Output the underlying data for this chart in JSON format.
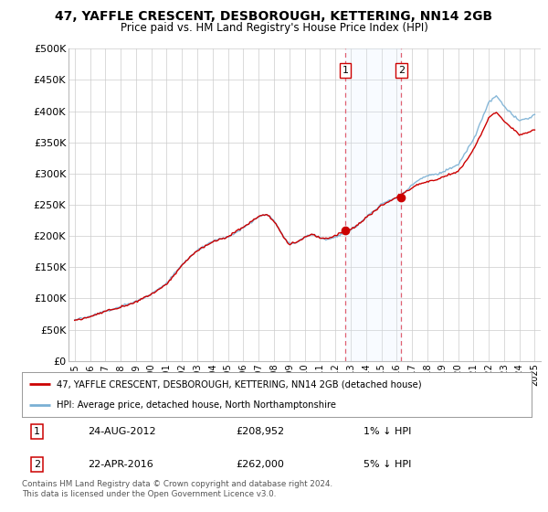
{
  "title": "47, YAFFLE CRESCENT, DESBOROUGH, KETTERING, NN14 2GB",
  "subtitle": "Price paid vs. HM Land Registry's House Price Index (HPI)",
  "ylim": [
    0,
    500000
  ],
  "yticks": [
    0,
    50000,
    100000,
    150000,
    200000,
    250000,
    300000,
    350000,
    400000,
    450000,
    500000
  ],
  "ytick_labels": [
    "£0",
    "£50K",
    "£100K",
    "£150K",
    "£200K",
    "£250K",
    "£300K",
    "£350K",
    "£400K",
    "£450K",
    "£500K"
  ],
  "background_color": "#ffffff",
  "plot_bg_color": "#ffffff",
  "grid_color": "#cccccc",
  "hpi_color": "#7ab0d4",
  "price_color": "#cc0000",
  "shade_color": "#ddeeff",
  "t1_year_float": 2012.64,
  "t2_year_float": 2016.29,
  "transaction1": {
    "date": "24-AUG-2012",
    "price": 208952,
    "label": "1",
    "pct": "1% ↓ HPI"
  },
  "transaction2": {
    "date": "22-APR-2016",
    "price": 262000,
    "label": "2",
    "pct": "5% ↓ HPI"
  },
  "legend_line1": "47, YAFFLE CRESCENT, DESBOROUGH, KETTERING, NN14 2GB (detached house)",
  "legend_line2": "HPI: Average price, detached house, North Northamptonshire",
  "footer1": "Contains HM Land Registry data © Crown copyright and database right 2024.",
  "footer2": "This data is licensed under the Open Government Licence v3.0."
}
